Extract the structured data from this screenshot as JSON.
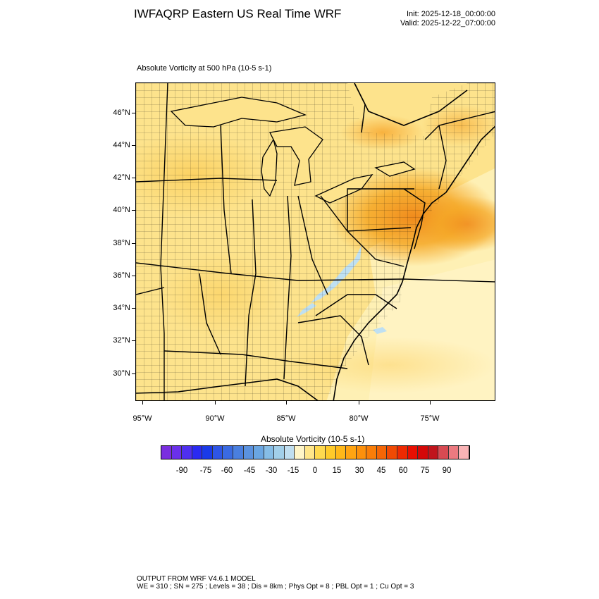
{
  "header": {
    "title": "IWFAQRP Eastern US Real Time WRF",
    "init": "Init: 2025-12-18_00:00:00",
    "valid": "Valid: 2025-12-22_07:00:00"
  },
  "map": {
    "field_title": "Absolute Vorticity at 500 hPa   (10-5 s-1)",
    "lat_labels": [
      "46°N",
      "44°N",
      "42°N",
      "40°N",
      "38°N",
      "36°N",
      "34°N",
      "32°N",
      "30°N"
    ],
    "lon_labels": [
      "95°W",
      "90°W",
      "85°W",
      "80°W",
      "75°W"
    ],
    "colors": {
      "land_base": "#fde38c",
      "ocean_base": "#fef0b4",
      "high": "#f5a623",
      "peak": "#f08a1c",
      "low": "#bfe0f2",
      "border": "#000000"
    }
  },
  "colorbar": {
    "title": "Absolute Vorticity  (10-5 s-1)",
    "labels": [
      "-90",
      "-75",
      "-60",
      "-45",
      "-30",
      "-15",
      "0",
      "15",
      "30",
      "45",
      "60",
      "75",
      "90"
    ],
    "colors": [
      "#7a2ee0",
      "#6a30ea",
      "#4f2ff0",
      "#2a2af2",
      "#1a3ae8",
      "#2e55e6",
      "#3a6ae2",
      "#4a7fdf",
      "#5b92df",
      "#6aa6e2",
      "#86bde6",
      "#a2cfe9",
      "#c0def0",
      "#fff5c8",
      "#ffe68a",
      "#ffd94f",
      "#ffca2a",
      "#ffb819",
      "#ffa412",
      "#fc900c",
      "#f97d08",
      "#f46606",
      "#f04a04",
      "#ee2a02",
      "#e80f02",
      "#d40808",
      "#c0141c",
      "#d84a52",
      "#ec7a80",
      "#f9b3b5"
    ]
  },
  "footer": {
    "line1": "OUTPUT FROM WRF V4.6.1 MODEL",
    "line2": "WE = 310 ; SN = 275 ; Levels = 38 ; Dis = 8km ; Phys Opt = 8 ; PBL Opt = 1 ; Cu Opt = 3"
  }
}
